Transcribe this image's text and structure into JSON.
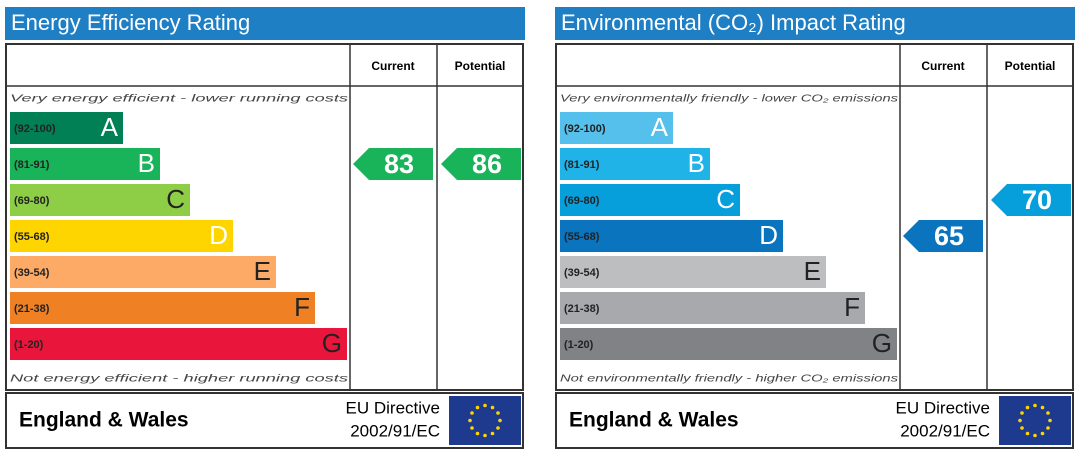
{
  "chart_data": [
    {
      "type": "epc",
      "title": "Energy Efficiency Rating",
      "columns": [
        "Current",
        "Potential"
      ],
      "top_note": "Very energy efficient - lower running costs",
      "bottom_note": "Not energy efficient - higher running costs",
      "bands": [
        {
          "range": "(92-100)",
          "letter": "A",
          "color": "#008054"
        },
        {
          "range": "(81-91)",
          "letter": "B",
          "color": "#19b459"
        },
        {
          "range": "(69-80)",
          "letter": "C",
          "color": "#8dce46"
        },
        {
          "range": "(55-68)",
          "letter": "D",
          "color": "#ffd500"
        },
        {
          "range": "(39-54)",
          "letter": "E",
          "color": "#fcaa65"
        },
        {
          "range": "(21-38)",
          "letter": "F",
          "color": "#ef8023"
        },
        {
          "range": "(1-20)",
          "letter": "G",
          "color": "#e9153b"
        }
      ],
      "current": 83,
      "potential": 86,
      "footer": {
        "region": "England & Wales",
        "directive": "EU Directive",
        "code": "2002/91/EC"
      }
    },
    {
      "type": "epc",
      "title": "Environmental (CO₂) Impact Rating",
      "columns": [
        "Current",
        "Potential"
      ],
      "top_note": "Very environmentally friendly - lower CO₂ emissions",
      "bottom_note": "Not environmentally friendly - higher CO₂ emissions",
      "bands": [
        {
          "range": "(92-100)",
          "letter": "A",
          "color": "#55c0ec"
        },
        {
          "range": "(81-91)",
          "letter": "B",
          "color": "#1fb3e8"
        },
        {
          "range": "(69-80)",
          "letter": "C",
          "color": "#069fdb"
        },
        {
          "range": "(55-68)",
          "letter": "D",
          "color": "#0b74bf"
        },
        {
          "range": "(39-54)",
          "letter": "E",
          "color": "#bdbec0"
        },
        {
          "range": "(21-38)",
          "letter": "F",
          "color": "#a7a9ac"
        },
        {
          "range": "(1-20)",
          "letter": "G",
          "color": "#808285"
        }
      ],
      "current": 65,
      "potential": 70,
      "footer": {
        "region": "England & Wales",
        "directive": "EU Directive",
        "code": "2002/91/EC"
      }
    }
  ]
}
